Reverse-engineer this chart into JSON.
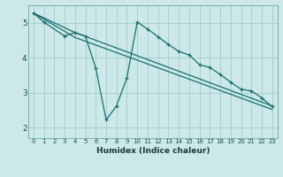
{
  "title": "",
  "xlabel": "Humidex (Indice chaleur)",
  "bg_color": "#cce8e8",
  "line_color": "#1a6e6e",
  "grid_color": "#9fcece",
  "xlim": [
    -0.5,
    23.5
  ],
  "ylim": [
    1.7,
    5.5
  ],
  "xticks": [
    0,
    1,
    2,
    3,
    4,
    5,
    6,
    7,
    8,
    9,
    10,
    11,
    12,
    13,
    14,
    15,
    16,
    17,
    18,
    19,
    20,
    21,
    22,
    23
  ],
  "yticks": [
    2,
    3,
    4,
    5
  ],
  "series1_x": [
    0,
    1,
    3,
    4,
    5,
    6,
    7,
    8,
    9,
    10,
    11,
    12,
    13,
    14,
    15,
    16,
    17,
    18,
    19,
    20,
    21,
    22,
    23
  ],
  "series1_y": [
    5.28,
    5.02,
    4.62,
    4.72,
    4.62,
    3.7,
    2.22,
    2.62,
    3.42,
    5.02,
    4.82,
    4.6,
    4.38,
    4.18,
    4.08,
    3.8,
    3.72,
    3.52,
    3.3,
    3.1,
    3.05,
    2.85,
    2.6
  ],
  "series2_x": [
    0,
    4,
    23
  ],
  "series2_y": [
    5.28,
    4.72,
    2.62
  ],
  "series3_x": [
    0,
    4,
    23
  ],
  "series3_y": [
    5.28,
    4.58,
    2.52
  ]
}
